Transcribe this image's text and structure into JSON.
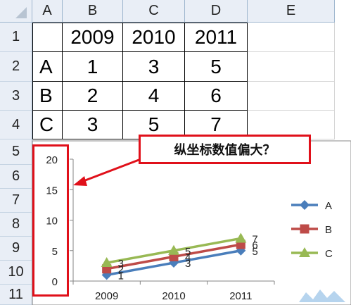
{
  "spreadsheet": {
    "corner_icon": "select-all-triangle-icon",
    "column_headers": [
      "A",
      "B",
      "C",
      "D",
      "E"
    ],
    "row_headers": [
      "1",
      "2",
      "3",
      "4",
      "5",
      "6",
      "7",
      "8",
      "9",
      "10",
      "11"
    ],
    "cells": [
      [
        "",
        "2009",
        "2010",
        "2011"
      ],
      [
        "A",
        "1",
        "3",
        "5"
      ],
      [
        "B",
        "2",
        "4",
        "6"
      ],
      [
        "C",
        "3",
        "5",
        "7"
      ]
    ]
  },
  "chart_data": {
    "type": "line",
    "categories": [
      "2009",
      "2010",
      "2011"
    ],
    "series": [
      {
        "name": "A",
        "values": [
          1,
          3,
          5
        ],
        "color": "#4a7ebb",
        "marker": "diamond"
      },
      {
        "name": "B",
        "values": [
          2,
          4,
          6
        ],
        "color": "#be4b48",
        "marker": "square"
      },
      {
        "name": "C",
        "values": [
          3,
          5,
          7
        ],
        "color": "#98b954",
        "marker": "triangle"
      }
    ],
    "y_ticks": [
      "0",
      "5",
      "10",
      "15",
      "20"
    ],
    "ylim": [
      0,
      20
    ],
    "data_labels": true,
    "legend_position": "right",
    "gridlines": false
  },
  "annotation": {
    "callout_text": "纵坐标数值偏大？",
    "accent_color": "#e0101a",
    "arrow_icon": "red-arrow-icon"
  }
}
